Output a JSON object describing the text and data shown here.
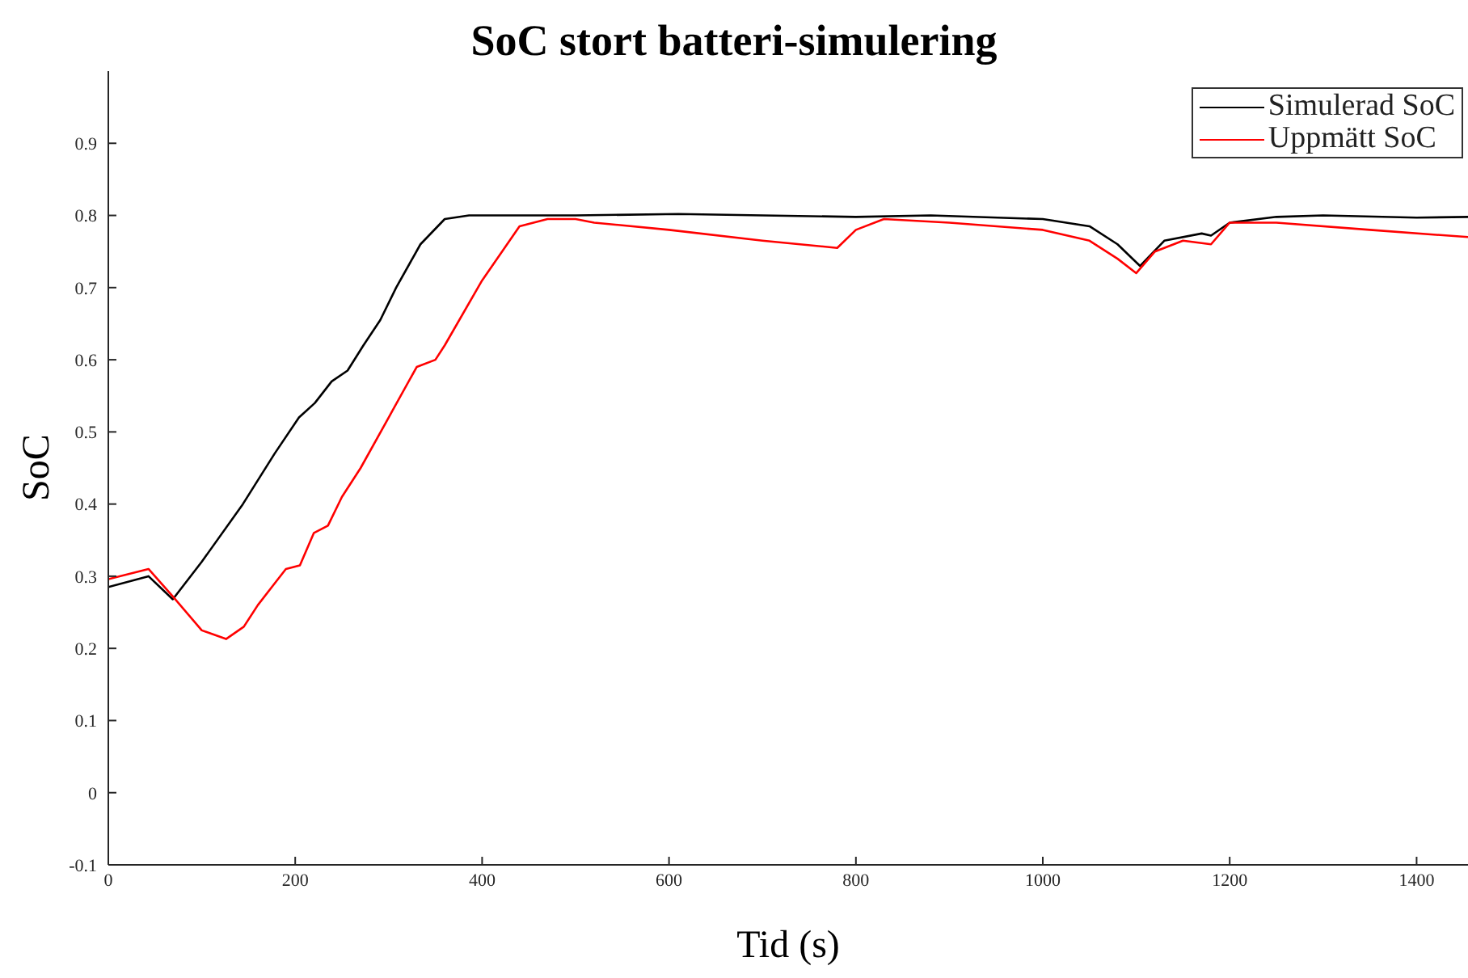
{
  "chart_data": {
    "type": "line",
    "title": "SoC stort batteri-simulering",
    "xlabel": "Tid (s)",
    "ylabel": "SoC",
    "xlim": [
      0,
      1455
    ],
    "xticks": [
      0,
      200,
      400,
      600,
      800,
      1000,
      1200,
      1400
    ],
    "ylim": [
      -0.1,
      1.0
    ],
    "yticks": [
      -0.1,
      0,
      0.1,
      0.2,
      0.3,
      0.4,
      0.5,
      0.6,
      0.7,
      0.8,
      0.9
    ],
    "grid": false,
    "legend": "top right",
    "marker": "none",
    "line_style": "solid",
    "series": [
      {
        "name": "Simulerad SoC",
        "color": "#000000",
        "x": [
          0,
          43,
          69,
          100,
          144,
          178,
          204,
          221,
          239,
          256,
          273,
          291,
          308,
          334,
          360,
          386,
          500,
          610,
          700,
          800,
          880,
          1000,
          1050,
          1080,
          1104,
          1130,
          1170,
          1180,
          1200,
          1250,
          1300,
          1400,
          1455
        ],
        "values": [
          0.285,
          0.3,
          0.268,
          0.32,
          0.4,
          0.47,
          0.52,
          0.54,
          0.57,
          0.585,
          0.62,
          0.655,
          0.7,
          0.76,
          0.795,
          0.8,
          0.8,
          0.802,
          0.8,
          0.798,
          0.8,
          0.795,
          0.785,
          0.76,
          0.73,
          0.765,
          0.775,
          0.772,
          0.79,
          0.798,
          0.8,
          0.797,
          0.798
        ]
      },
      {
        "name": "Uppmätt SoC",
        "color": "#ff0000",
        "x": [
          0,
          43,
          69,
          100,
          126,
          145,
          160,
          175,
          190,
          205,
          220,
          235,
          250,
          270,
          300,
          330,
          350,
          360,
          400,
          440,
          470,
          500,
          520,
          600,
          700,
          780,
          800,
          830,
          900,
          1000,
          1050,
          1080,
          1100,
          1120,
          1150,
          1180,
          1200,
          1250,
          1350,
          1455
        ],
        "values": [
          0.296,
          0.31,
          0.272,
          0.225,
          0.213,
          0.23,
          0.26,
          0.285,
          0.31,
          0.315,
          0.36,
          0.37,
          0.41,
          0.45,
          0.52,
          0.59,
          0.6,
          0.62,
          0.71,
          0.785,
          0.795,
          0.795,
          0.79,
          0.78,
          0.765,
          0.755,
          0.78,
          0.795,
          0.79,
          0.78,
          0.765,
          0.74,
          0.72,
          0.75,
          0.765,
          0.76,
          0.79,
          0.79,
          0.78,
          0.77
        ]
      }
    ]
  }
}
